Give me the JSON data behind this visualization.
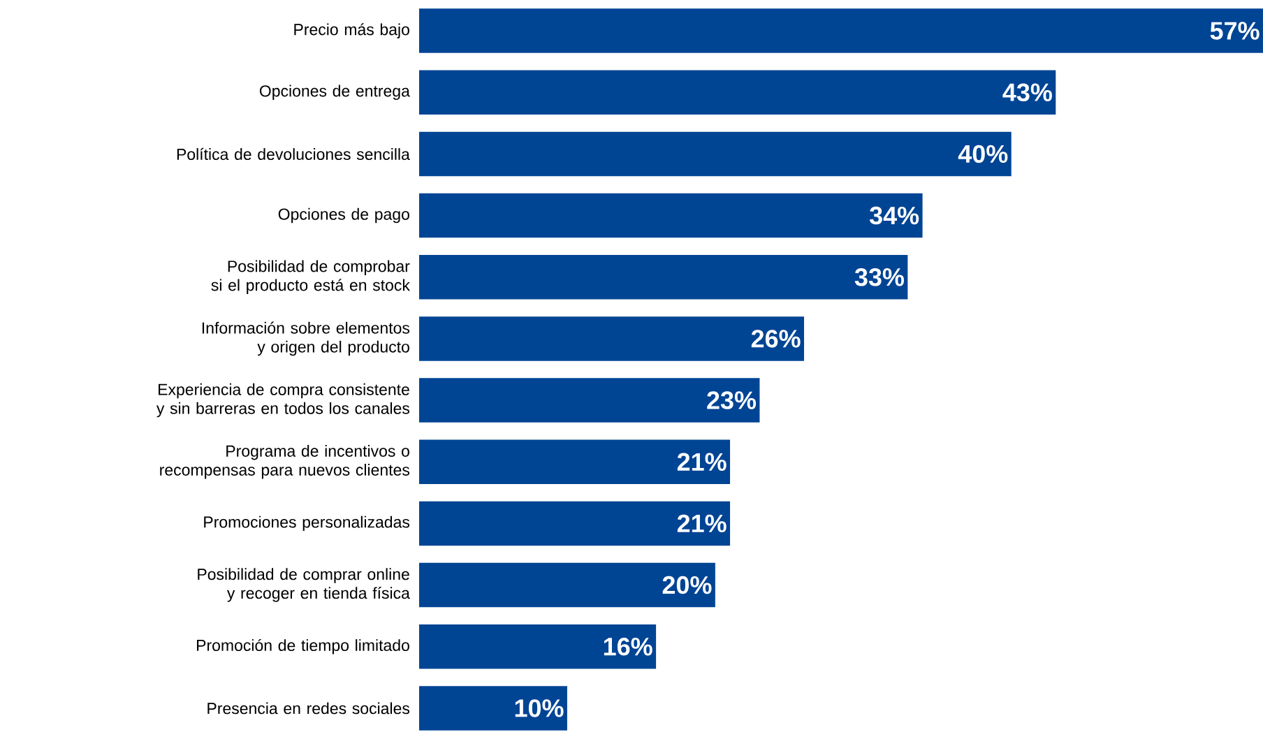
{
  "chart_data": {
    "type": "bar",
    "orientation": "horizontal",
    "color": "#004494",
    "categories": [
      "Precio más bajo",
      "Opciones de entrega",
      "Política de devoluciones sencilla",
      "Opciones de pago",
      "Posibilidad de comprobar si el producto está en stock",
      "Información sobre elementos y origen del producto",
      "Experiencia de compra consistente y sin barreras en todos los canales",
      "Programa de incentivos o recompensas para nuevos clientes",
      "Promociones personalizadas",
      "Posibilidad de comprar online y recoger en tienda física",
      "Promoción de tiempo limitado",
      "Presencia en redes sociales"
    ],
    "values": [
      57,
      43,
      40,
      34,
      33,
      26,
      23,
      21,
      21,
      20,
      16,
      10
    ],
    "value_labels": [
      "57%",
      "43%",
      "40%",
      "34%",
      "33%",
      "26%",
      "23%",
      "21%",
      "21%",
      "20%",
      "16%",
      "10%"
    ]
  }
}
